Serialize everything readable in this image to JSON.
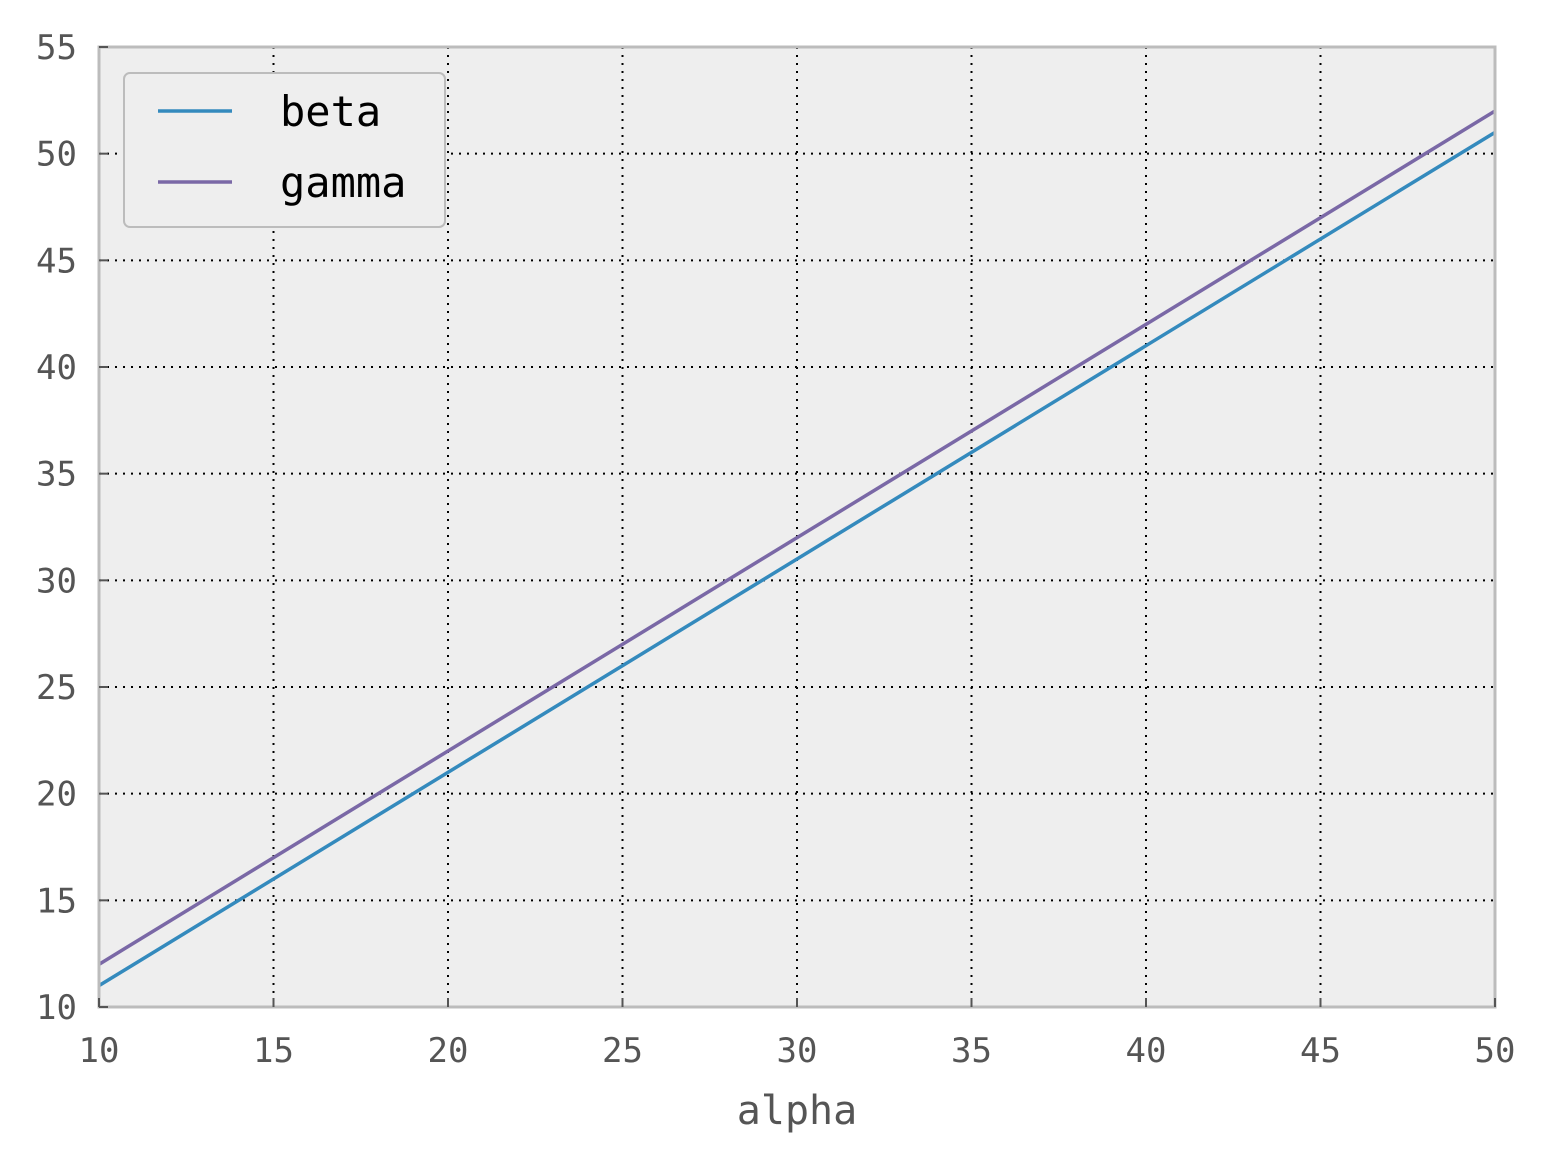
{
  "chart_data": {
    "type": "line",
    "title": "",
    "xlabel": "alpha",
    "ylabel": "",
    "xlim": [
      10,
      50
    ],
    "ylim": [
      10,
      55
    ],
    "xticks": [
      10,
      15,
      20,
      25,
      30,
      35,
      40,
      45,
      50
    ],
    "yticks": [
      10,
      15,
      20,
      25,
      30,
      35,
      40,
      45,
      50,
      55
    ],
    "grid": true,
    "legend_position": "top-left",
    "background": "#eeeeee",
    "series": [
      {
        "name": "beta",
        "color": "#348abd",
        "x": [
          10,
          50
        ],
        "y": [
          11,
          51
        ]
      },
      {
        "name": "gamma",
        "color": "#7a68a6",
        "x": [
          10,
          50
        ],
        "y": [
          12,
          52
        ]
      }
    ]
  }
}
